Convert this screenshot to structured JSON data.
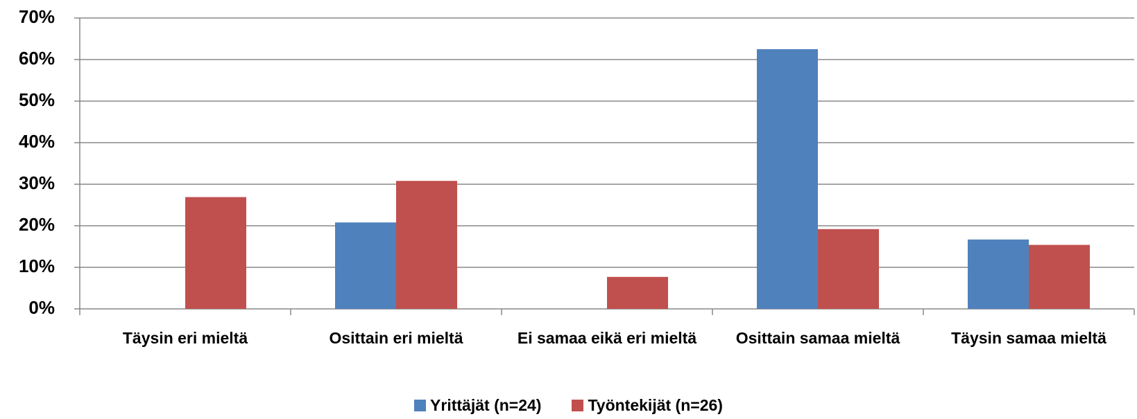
{
  "chart_data": {
    "type": "bar",
    "categories": [
      "Täysin eri mieltä",
      "Osittain eri mieltä",
      "Ei samaa eikä eri mieltä",
      "Osittain samaa mieltä",
      "Täysin samaa mieltä"
    ],
    "series": [
      {
        "name": "Yrittäjät (n=24)",
        "color": "#4f81bd",
        "values": [
          0,
          20.8,
          0,
          62.5,
          16.7
        ]
      },
      {
        "name": "Työntekijät (n=26)",
        "color": "#c0504d",
        "values": [
          26.9,
          30.8,
          7.7,
          19.2,
          15.4
        ]
      }
    ],
    "ylim": [
      0,
      70
    ],
    "yticks": [
      {
        "value": 0,
        "label": "0%"
      },
      {
        "value": 10,
        "label": "10%"
      },
      {
        "value": 20,
        "label": "20%"
      },
      {
        "value": 30,
        "label": "30%"
      },
      {
        "value": 40,
        "label": "40%"
      },
      {
        "value": 50,
        "label": "50%"
      },
      {
        "value": 60,
        "label": "60%"
      },
      {
        "value": 70,
        "label": "70%"
      }
    ],
    "grid": true,
    "legend": "bottom"
  }
}
